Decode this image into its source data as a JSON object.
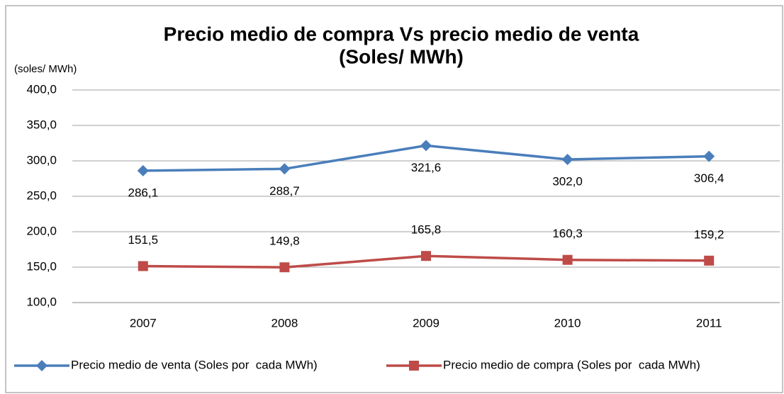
{
  "chart_data": {
    "type": "line",
    "title": [
      "Precio medio de compra Vs precio medio de venta",
      "(Soles/ MWh)"
    ],
    "y_label": "(soles/ MWh)",
    "categories": [
      "2007",
      "2008",
      "2009",
      "2010",
      "2011"
    ],
    "series": [
      {
        "name": "Precio medio de venta (Soles por  cada MWh)",
        "color": "#4a7ebb",
        "marker": "diamond",
        "values": [
          286.1,
          288.7,
          321.6,
          302.0,
          306.4
        ],
        "value_labels": [
          "286,1",
          "288,7",
          "321,6",
          "302,0",
          "306,4"
        ]
      },
      {
        "name": "Precio medio de compra (Soles por  cada MWh)",
        "color": "#be4b48",
        "marker": "square",
        "values": [
          151.5,
          149.8,
          165.8,
          160.3,
          159.2
        ],
        "value_labels": [
          "151,5",
          "149,8",
          "165,8",
          "160,3",
          "159,2"
        ]
      }
    ],
    "ylim": [
      100,
      400
    ],
    "yticks": [
      {
        "value": 100,
        "label": "100,0"
      },
      {
        "value": 150,
        "label": "150,0"
      },
      {
        "value": 200,
        "label": "200,0"
      },
      {
        "value": 250,
        "label": "250,0"
      },
      {
        "value": 300,
        "label": "300,0"
      },
      {
        "value": 350,
        "label": "350,0"
      },
      {
        "value": 400,
        "label": "400,0"
      }
    ],
    "grid": true,
    "legend": "bottom"
  }
}
